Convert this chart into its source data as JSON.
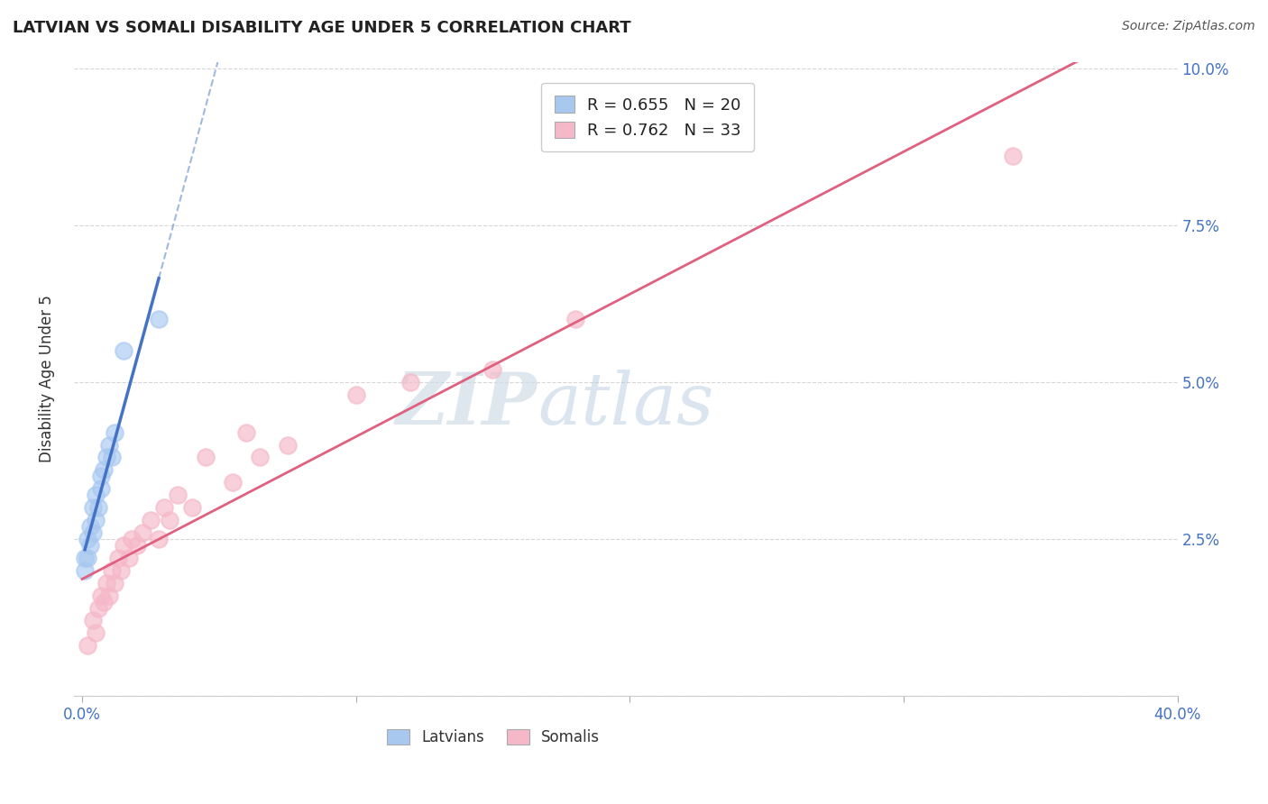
{
  "title": "LATVIAN VS SOMALI DISABILITY AGE UNDER 5 CORRELATION CHART",
  "source": "Source: ZipAtlas.com",
  "ylabel": "Disability Age Under 5",
  "x_min": 0.0,
  "x_max": 0.4,
  "y_min": 0.0,
  "y_max": 0.1,
  "latvian_R": 0.655,
  "latvian_N": 20,
  "somali_R": 0.762,
  "somali_N": 33,
  "latvian_color": "#a8c8f0",
  "somali_color": "#f5b8c8",
  "latvian_line_color": "#4472c4",
  "somali_line_color": "#e06080",
  "watermark_zip": "ZIP",
  "watermark_atlas": "atlas",
  "latvian_x": [
    0.001,
    0.001,
    0.002,
    0.002,
    0.003,
    0.003,
    0.004,
    0.004,
    0.005,
    0.005,
    0.006,
    0.007,
    0.007,
    0.008,
    0.009,
    0.01,
    0.011,
    0.012,
    0.015,
    0.028
  ],
  "latvian_y": [
    0.02,
    0.022,
    0.022,
    0.025,
    0.024,
    0.027,
    0.026,
    0.03,
    0.028,
    0.032,
    0.03,
    0.033,
    0.035,
    0.036,
    0.038,
    0.04,
    0.038,
    0.042,
    0.055,
    0.06
  ],
  "somali_x": [
    0.002,
    0.004,
    0.005,
    0.006,
    0.007,
    0.008,
    0.009,
    0.01,
    0.011,
    0.012,
    0.013,
    0.014,
    0.015,
    0.017,
    0.018,
    0.02,
    0.022,
    0.025,
    0.028,
    0.03,
    0.032,
    0.035,
    0.04,
    0.045,
    0.055,
    0.06,
    0.065,
    0.075,
    0.1,
    0.12,
    0.15,
    0.18,
    0.34
  ],
  "somali_y": [
    0.008,
    0.012,
    0.01,
    0.014,
    0.016,
    0.015,
    0.018,
    0.016,
    0.02,
    0.018,
    0.022,
    0.02,
    0.024,
    0.022,
    0.025,
    0.024,
    0.026,
    0.028,
    0.025,
    0.03,
    0.028,
    0.032,
    0.03,
    0.038,
    0.034,
    0.042,
    0.038,
    0.04,
    0.048,
    0.05,
    0.052,
    0.06,
    0.086
  ]
}
